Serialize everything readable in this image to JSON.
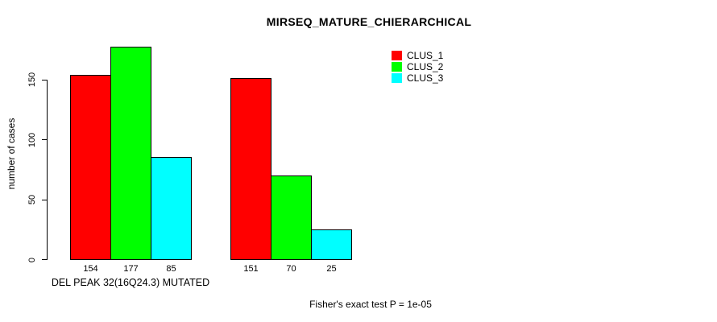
{
  "chart_data": {
    "type": "bar",
    "title": "MIRSEQ_MATURE_CHIERARCHICAL",
    "ylabel": "number of cases",
    "xlabel": "DEL PEAK 32(16Q24.3) MUTATED",
    "annotation": "Fisher's exact test P = 1e-05",
    "yticks": [
      0,
      50,
      100,
      150
    ],
    "ylim": [
      0,
      177
    ],
    "grid": false,
    "legend_position": "top-right",
    "bar_value_labels_shown": true,
    "categories": [
      "DEL PEAK 32(16Q24.3) MUTATED",
      ""
    ],
    "series": [
      {
        "name": "CLUS_1",
        "color": "#ff0000",
        "values": [
          154,
          151
        ]
      },
      {
        "name": "CLUS_2",
        "color": "#00ff00",
        "values": [
          177,
          70
        ]
      },
      {
        "name": "CLUS_3",
        "color": "#00ffff",
        "values": [
          85,
          25
        ]
      }
    ]
  },
  "colors": {
    "background": "#ffffff",
    "axis": "#000000",
    "text": "#000000"
  }
}
